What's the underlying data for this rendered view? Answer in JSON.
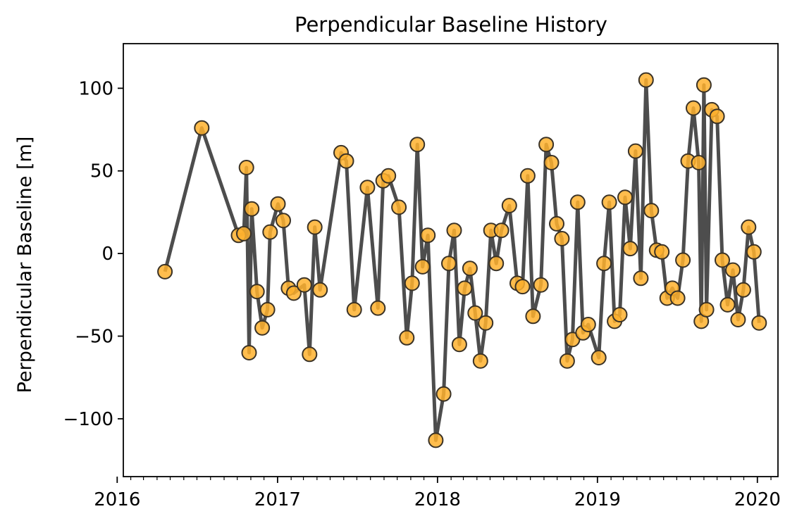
{
  "chart_data": {
    "type": "line",
    "title": "Perpendicular Baseline History",
    "xlabel": "",
    "ylabel": "Perpendicular Baseline [m]",
    "xlim": [
      "2016-01-15",
      "2020-02-17"
    ],
    "ylim": [
      -135,
      127
    ],
    "x_ticks": [
      "2016",
      "2017",
      "2018",
      "2019",
      "2020"
    ],
    "y_ticks": [
      -100,
      -50,
      0,
      50,
      100
    ],
    "y_tick_labels": [
      "−100",
      "−50",
      "0",
      "50",
      "100"
    ],
    "grid": false,
    "legend": "none",
    "colors": {
      "line": "#4d4d4d",
      "marker_fill": "#ffb12e",
      "marker_edge": "#3a3226"
    },
    "series": [
      {
        "x": [
          "2016-04-19",
          "2016-07-12",
          "2016-10-04",
          "2016-10-16",
          "2016-10-22",
          "2016-10-28",
          "2016-11-03",
          "2016-11-15",
          "2016-11-27",
          "2016-12-09",
          "2016-12-15",
          "2017-01-02",
          "2017-01-14",
          "2017-01-26",
          "2017-02-07",
          "2017-03-03",
          "2017-03-15",
          "2017-03-27",
          "2017-04-08",
          "2017-05-26",
          "2017-06-07",
          "2017-06-25",
          "2017-07-25",
          "2017-08-18",
          "2017-08-30",
          "2017-09-11",
          "2017-10-05",
          "2017-10-23",
          "2017-11-04",
          "2017-11-16",
          "2017-11-28",
          "2017-12-10",
          "2017-12-28",
          "2018-01-15",
          "2018-01-27",
          "2018-02-08",
          "2018-02-20",
          "2018-03-04",
          "2018-03-16",
          "2018-03-28",
          "2018-04-09",
          "2018-04-21",
          "2018-05-03",
          "2018-05-15",
          "2018-05-27",
          "2018-06-14",
          "2018-07-02",
          "2018-07-14",
          "2018-07-26",
          "2018-08-07",
          "2018-08-25",
          "2018-09-06",
          "2018-09-18",
          "2018-09-30",
          "2018-10-12",
          "2018-10-24",
          "2018-11-05",
          "2018-11-17",
          "2018-11-29",
          "2018-12-11",
          "2019-01-04",
          "2019-01-16",
          "2019-01-28",
          "2019-02-09",
          "2019-02-21",
          "2019-03-05",
          "2019-03-17",
          "2019-03-29",
          "2019-04-10",
          "2019-04-22",
          "2019-05-04",
          "2019-05-16",
          "2019-05-28",
          "2019-06-09",
          "2019-06-21",
          "2019-07-03",
          "2019-07-15",
          "2019-07-27",
          "2019-08-08",
          "2019-08-20",
          "2019-08-26",
          "2019-09-01",
          "2019-09-07",
          "2019-09-19",
          "2019-10-01",
          "2019-10-13",
          "2019-10-25",
          "2019-11-06",
          "2019-11-18",
          "2019-11-30",
          "2019-12-12",
          "2019-12-24",
          "2020-01-05"
        ],
        "values": [
          -11,
          76,
          11,
          12,
          52,
          -60,
          27,
          -23,
          -45,
          -34,
          13,
          30,
          20,
          -21,
          -24,
          -19,
          -61,
          16,
          -22,
          61,
          56,
          -34,
          40,
          -33,
          44,
          47,
          28,
          -51,
          -18,
          66,
          -8,
          11,
          -113,
          -85,
          -6,
          14,
          -55,
          -21,
          -9,
          -36,
          -65,
          -42,
          14,
          -6,
          14,
          29,
          -18,
          -20,
          47,
          -38,
          -19,
          66,
          55,
          18,
          9,
          -65,
          -52,
          31,
          -48,
          -43,
          -63,
          -6,
          31,
          -41,
          -37,
          34,
          3,
          62,
          -15,
          105,
          26,
          2,
          1,
          -27,
          -21,
          -27,
          -4,
          56,
          88,
          55,
          -41,
          102,
          -34,
          87,
          83,
          -4,
          -31,
          -10,
          -40,
          -22,
          16,
          1,
          -42
        ]
      }
    ]
  }
}
